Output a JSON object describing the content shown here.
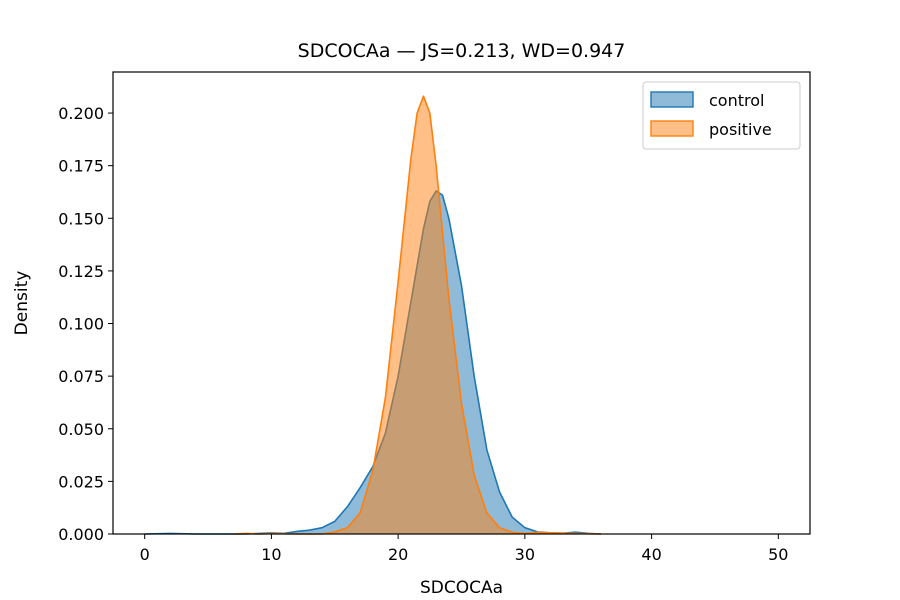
{
  "chart_data": {
    "type": "area",
    "title": "SDCOCAa — JS=0.213, WD=0.947",
    "xlabel": "SDCOCAa",
    "ylabel": "Density",
    "xlim": [
      -2.5,
      52.5
    ],
    "ylim": [
      0,
      0.2195
    ],
    "x_ticks": [
      0,
      10,
      20,
      30,
      40,
      50
    ],
    "y_ticks": [
      0.0,
      0.025,
      0.05,
      0.075,
      0.1,
      0.125,
      0.15,
      0.175,
      0.2
    ],
    "x_tick_labels": [
      "0",
      "10",
      "20",
      "30",
      "40",
      "50"
    ],
    "y_tick_labels": [
      "0.000",
      "0.025",
      "0.050",
      "0.075",
      "0.100",
      "0.125",
      "0.150",
      "0.175",
      "0.200"
    ],
    "grid": false,
    "legend_position": "top-right",
    "series": [
      {
        "name": "control",
        "color": "#1f77b4",
        "points": [
          [
            0,
            0.0
          ],
          [
            2,
            0.0003
          ],
          [
            4,
            0.0
          ],
          [
            8,
            0.0
          ],
          [
            10,
            0.0005
          ],
          [
            11,
            0.0003
          ],
          [
            12,
            0.0012
          ],
          [
            13,
            0.0018
          ],
          [
            14,
            0.003
          ],
          [
            15,
            0.006
          ],
          [
            16,
            0.013
          ],
          [
            17,
            0.022
          ],
          [
            18,
            0.032
          ],
          [
            19,
            0.048
          ],
          [
            20,
            0.075
          ],
          [
            21,
            0.11
          ],
          [
            22,
            0.145
          ],
          [
            22.5,
            0.158
          ],
          [
            23,
            0.163
          ],
          [
            23.5,
            0.161
          ],
          [
            24,
            0.15
          ],
          [
            25,
            0.118
          ],
          [
            26,
            0.075
          ],
          [
            27,
            0.04
          ],
          [
            28,
            0.02
          ],
          [
            29,
            0.008
          ],
          [
            30,
            0.003
          ],
          [
            31,
            0.001
          ],
          [
            32,
            0.0006
          ],
          [
            33,
            0.0004
          ],
          [
            34,
            0.0009
          ],
          [
            35,
            0.0003
          ],
          [
            36,
            0.0
          ]
        ]
      },
      {
        "name": "positive",
        "color": "#ff7f0e",
        "points": [
          [
            7,
            0.0
          ],
          [
            8,
            0.0003
          ],
          [
            9,
            0.0
          ],
          [
            10,
            0.0002
          ],
          [
            12,
            0.0
          ],
          [
            14,
            0.0
          ],
          [
            15,
            0.001
          ],
          [
            16,
            0.003
          ],
          [
            17,
            0.01
          ],
          [
            18,
            0.03
          ],
          [
            19,
            0.065
          ],
          [
            20,
            0.12
          ],
          [
            21,
            0.178
          ],
          [
            21.5,
            0.2
          ],
          [
            22,
            0.208
          ],
          [
            22.5,
            0.2
          ],
          [
            23,
            0.175
          ],
          [
            24,
            0.112
          ],
          [
            25,
            0.062
          ],
          [
            26,
            0.028
          ],
          [
            27,
            0.01
          ],
          [
            28,
            0.003
          ],
          [
            29,
            0.0008
          ],
          [
            30,
            0.0003
          ],
          [
            31,
            0.0008
          ],
          [
            32,
            0.0006
          ],
          [
            33,
            0.0004
          ],
          [
            34,
            0.0002
          ],
          [
            36,
            0.0
          ]
        ]
      }
    ]
  }
}
